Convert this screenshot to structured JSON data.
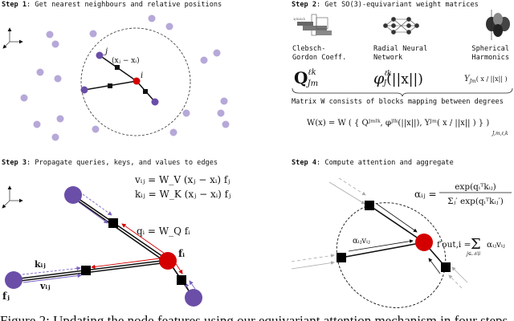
{
  "colors": {
    "neighbour": "#b6a8d8",
    "selected_neighbour": "#6a4ea8",
    "center_node": "#d40000",
    "query_arrow": "#d40000",
    "kv_arrow": "#7a62c0"
  },
  "step1": {
    "label": "Step 1",
    "title": ": Get nearest neighbours and relative positions",
    "node_i": "i",
    "node_j": "j",
    "rel_pos": "(xⱼ − xᵢ)"
  },
  "step2": {
    "label": "Step 2",
    "title": ": Get SO(3)-equivariant weight matrices",
    "items": [
      {
        "line1": "Clebsch-",
        "line2": "Gordon Coeff.",
        "formula": "Q",
        "sup": "ℓk",
        "sub": "Jm",
        "icon": "clebsch-gordon-table-icon",
        "icon_text": "1/2×1/2"
      },
      {
        "line1": "Radial Neural",
        "line2": "Network",
        "formula": "φ",
        "sup": "ℓk",
        "sub": "J",
        "arg": "(||x||)",
        "icon": "neural-network-icon"
      },
      {
        "line1": "Spherical",
        "line2": "Harmonics",
        "formula": "Y",
        "sub": "Jm",
        "arg": "( x / ||x|| )",
        "icon": "spherical-harmonics-icon"
      }
    ],
    "brace_text": "Matrix W consists of blocks mapping between degrees",
    "w_formula": "W(x) = W ( { Qᴶᵐˡᵏ, φᴶˡᵏ(||x||), Yᴶᵐ( x / ||x|| ) } )",
    "w_formula_sub": "J,m,ℓ,k"
  },
  "step3": {
    "label": "Step 3",
    "title": ": Propagate queries, keys, and values to edges",
    "v_formula": "vᵢⱼ = W_V (xⱼ − xᵢ) fⱼ",
    "k_formula": "kᵢⱼ = W_K (xⱼ − xᵢ) fⱼ",
    "q_formula": "qᵢ = W_Q fᵢ",
    "f_i": "fᵢ",
    "f_j": "fⱼ",
    "k_label": "kᵢⱼ",
    "v_label": "vᵢⱼ"
  },
  "step4": {
    "label": "Step 4",
    "title": ": Compute attention and aggregate",
    "alpha_lhs": "αᵢⱼ =",
    "alpha_num": "exp(qᵢᵀkᵢⱼ)",
    "alpha_den": "Σⱼ′ exp(qᵢᵀkᵢⱼ′)",
    "out_lhs": "f′out,i =",
    "out_sum": "Σ",
    "out_sum_sub": "j∈𝒩ᵢ\\i",
    "out_rhs": "αᵢⱼvᵢⱼ",
    "edge_label": "αᵢⱼvᵢⱼ"
  },
  "caption": "Figure 2: Updating the node features using our equivariant attention mechanism in four steps. A"
}
